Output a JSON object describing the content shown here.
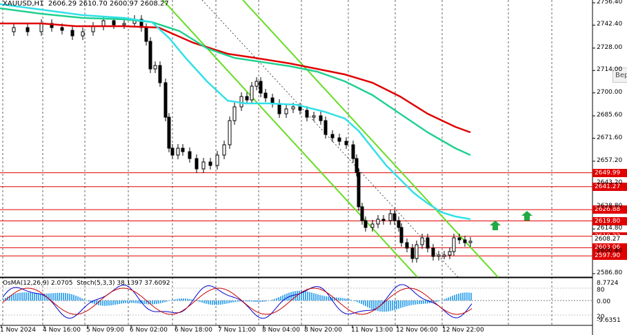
{
  "window": {
    "symbol": "XAUUSD,H1",
    "ohlc": "2606.29 2610.70 2600.97 2608.27",
    "tooltip": "Bep"
  },
  "oscillator": {
    "osma": "OsMA(12,26,9) 2.0705",
    "stoch": "Stoch(5,3,3) 38.1397 37.6092",
    "levels": [
      "8.7724",
      "80",
      "0.00",
      "20",
      "-9.6351"
    ]
  },
  "price_axis": {
    "ticks": [
      "2756.40",
      "2742.40",
      "2728.00",
      "2714.00",
      "2700.00",
      "2685.60",
      "2671.60",
      "2657.20",
      "2643.20",
      "2628.80",
      "2614.80",
      "2600.40",
      "2586.80"
    ]
  },
  "levels": [
    {
      "label": "2649.99",
      "style": "red"
    },
    {
      "label": "2641.27",
      "style": "red"
    },
    {
      "label": "2626.88",
      "style": "red"
    },
    {
      "label": "2619.80",
      "style": "red"
    },
    {
      "label": "2610.22",
      "style": "red"
    },
    {
      "label": "2608.27",
      "style": "white"
    },
    {
      "label": "2603.06",
      "style": "red"
    },
    {
      "label": "2597.90",
      "style": "red"
    }
  ],
  "time_axis": [
    "1 Nov 2024",
    "4 Nov 16:00",
    "5 Nov 09:00",
    "6 Nov 02:00",
    "6 Nov 18:00",
    "7 Nov 11:00",
    "8 Nov 04:00",
    "8 Nov 20:00",
    "11 Nov 13:00",
    "12 Nov 06:00",
    "12 Nov 22:00"
  ],
  "colors": {
    "ema_slow": "#e00000",
    "ema_mid": "#20d090",
    "ema_fast": "#30e0e8",
    "channel": "#66dd22",
    "arrow": "#22aa44",
    "histogram": "#44aaee",
    "stoch_main": "#0000cc",
    "stoch_signal": "#cc0000"
  }
}
